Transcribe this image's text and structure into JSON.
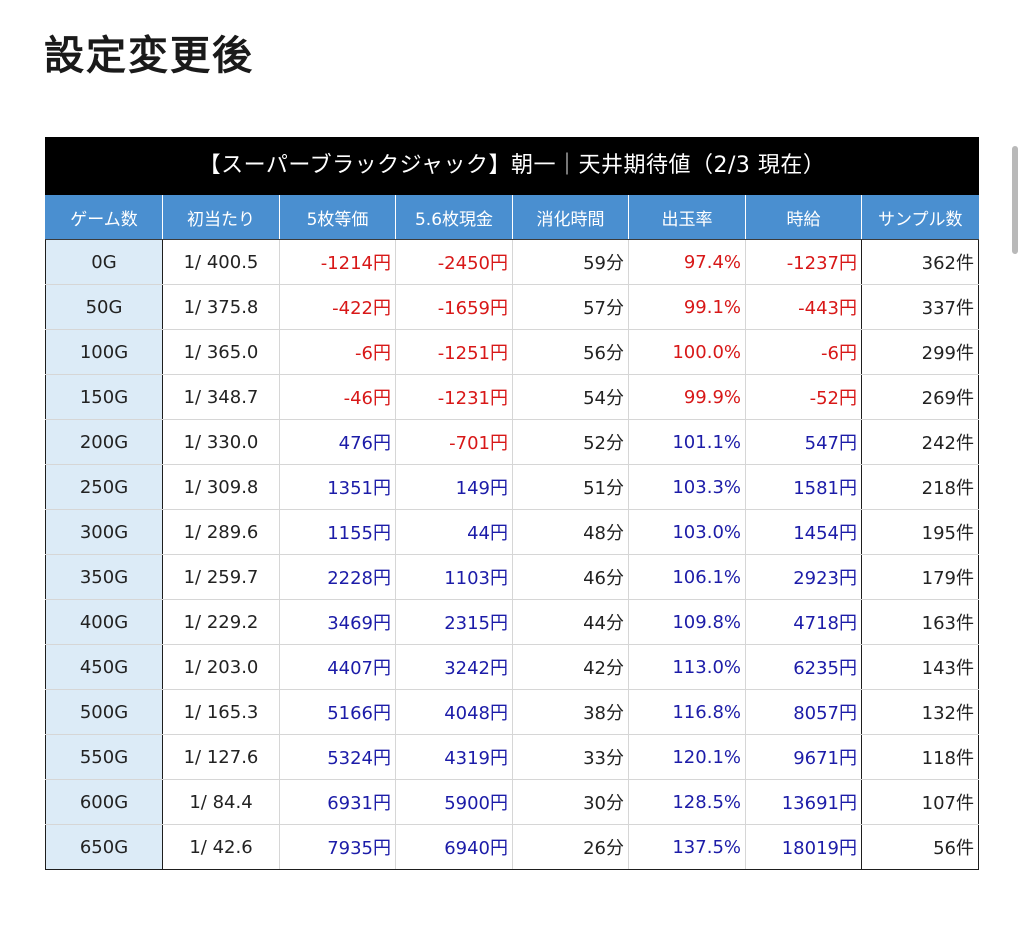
{
  "heading": "設定変更後",
  "table": {
    "caption": "【スーパーブラックジャック】朝一｜天井期待値（2/3 現在）",
    "headers": [
      "ゲーム数",
      "初当たり",
      "5枚等価",
      "5.6枚現金",
      "消化時間",
      "出玉率",
      "時給",
      "サンプル数"
    ],
    "rows": [
      {
        "game": "0G",
        "hit": "1/ 400.5",
        "eq5": "-1214円",
        "cash56": "-2450円",
        "time": "59分",
        "payout": "97.4%",
        "hourly": "-1237円",
        "samples": "362件"
      },
      {
        "game": "50G",
        "hit": "1/ 375.8",
        "eq5": "-422円",
        "cash56": "-1659円",
        "time": "57分",
        "payout": "99.1%",
        "hourly": "-443円",
        "samples": "337件"
      },
      {
        "game": "100G",
        "hit": "1/ 365.0",
        "eq5": "-6円",
        "cash56": "-1251円",
        "time": "56分",
        "payout": "100.0%",
        "hourly": "-6円",
        "samples": "299件"
      },
      {
        "game": "150G",
        "hit": "1/ 348.7",
        "eq5": "-46円",
        "cash56": "-1231円",
        "time": "54分",
        "payout": "99.9%",
        "hourly": "-52円",
        "samples": "269件"
      },
      {
        "game": "200G",
        "hit": "1/ 330.0",
        "eq5": "476円",
        "cash56": "-701円",
        "time": "52分",
        "payout": "101.1%",
        "hourly": "547円",
        "samples": "242件"
      },
      {
        "game": "250G",
        "hit": "1/ 309.8",
        "eq5": "1351円",
        "cash56": "149円",
        "time": "51分",
        "payout": "103.3%",
        "hourly": "1581円",
        "samples": "218件"
      },
      {
        "game": "300G",
        "hit": "1/ 289.6",
        "eq5": "1155円",
        "cash56": "44円",
        "time": "48分",
        "payout": "103.0%",
        "hourly": "1454円",
        "samples": "195件"
      },
      {
        "game": "350G",
        "hit": "1/ 259.7",
        "eq5": "2228円",
        "cash56": "1103円",
        "time": "46分",
        "payout": "106.1%",
        "hourly": "2923円",
        "samples": "179件"
      },
      {
        "game": "400G",
        "hit": "1/ 229.2",
        "eq5": "3469円",
        "cash56": "2315円",
        "time": "44分",
        "payout": "109.8%",
        "hourly": "4718円",
        "samples": "163件"
      },
      {
        "game": "450G",
        "hit": "1/ 203.0",
        "eq5": "4407円",
        "cash56": "3242円",
        "time": "42分",
        "payout": "113.0%",
        "hourly": "6235円",
        "samples": "143件"
      },
      {
        "game": "500G",
        "hit": "1/ 165.3",
        "eq5": "5166円",
        "cash56": "4048円",
        "time": "38分",
        "payout": "116.8%",
        "hourly": "8057円",
        "samples": "132件"
      },
      {
        "game": "550G",
        "hit": "1/ 127.6",
        "eq5": "5324円",
        "cash56": "4319円",
        "time": "33分",
        "payout": "120.1%",
        "hourly": "9671円",
        "samples": "118件"
      },
      {
        "game": "600G",
        "hit": "1/ 84.4",
        "eq5": "6931円",
        "cash56": "5900円",
        "time": "30分",
        "payout": "128.5%",
        "hourly": "13691円",
        "samples": "107件"
      },
      {
        "game": "650G",
        "hit": "1/ 42.6",
        "eq5": "7935円",
        "cash56": "6940円",
        "time": "26分",
        "payout": "137.5%",
        "hourly": "18019円",
        "samples": "56件"
      }
    ]
  },
  "colors": {
    "caption_bg": "#000000",
    "header_bg": "#4a8fd0",
    "first_col_bg": "#dcebf7",
    "negative": "#d81818",
    "positive": "#1c1ca8"
  }
}
